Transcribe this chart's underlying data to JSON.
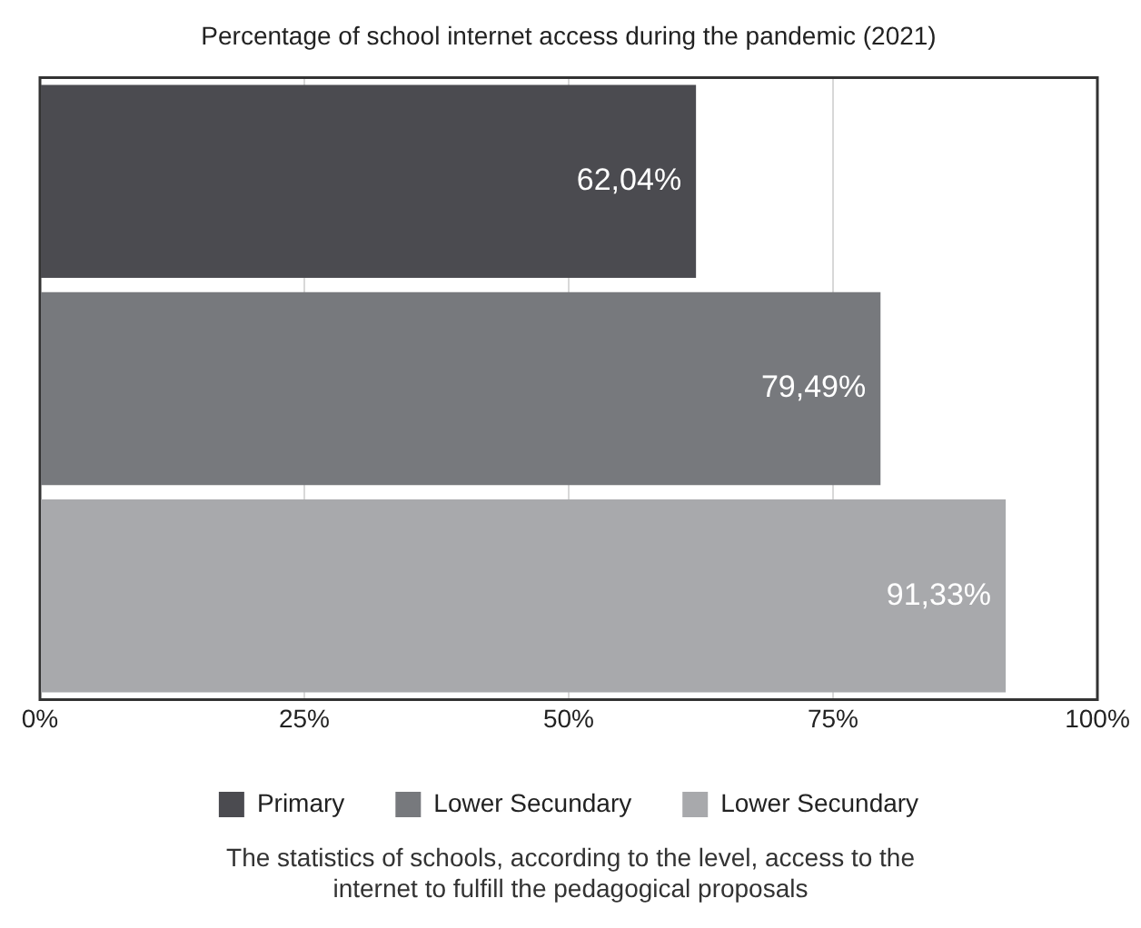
{
  "chart_data": {
    "type": "bar",
    "orientation": "horizontal",
    "title": "Percentage of school internet access during the pandemic (2021)",
    "categories": [
      null,
      null,
      null
    ],
    "series": [
      {
        "name": "Primary",
        "color": "#4b4b50",
        "values": [
          62.04,
          null,
          null
        ],
        "value_labels": [
          "62,04%",
          null,
          null
        ]
      },
      {
        "name": "Lower Secundary",
        "color": "#77797d",
        "values": [
          null,
          79.49,
          null
        ],
        "value_labels": [
          null,
          "79,49%",
          null
        ]
      },
      {
        "name": "Lower Secundary",
        "color": "#a8a9ac",
        "values": [
          null,
          null,
          91.33
        ],
        "value_labels": [
          null,
          null,
          "91,33%"
        ]
      }
    ],
    "xlim": [
      0,
      100
    ],
    "xticks": [
      {
        "value": 0,
        "label": "0%"
      },
      {
        "value": 25,
        "label": "25%"
      },
      {
        "value": 50,
        "label": "50%"
      },
      {
        "value": 75,
        "label": "75%"
      },
      {
        "value": 100,
        "label": "100%"
      }
    ],
    "grid": "x",
    "legend": "bottom",
    "annotations": [
      "The statistics of schools, according to the level, access to the internet to fulfill the pedagogical proposals"
    ]
  }
}
